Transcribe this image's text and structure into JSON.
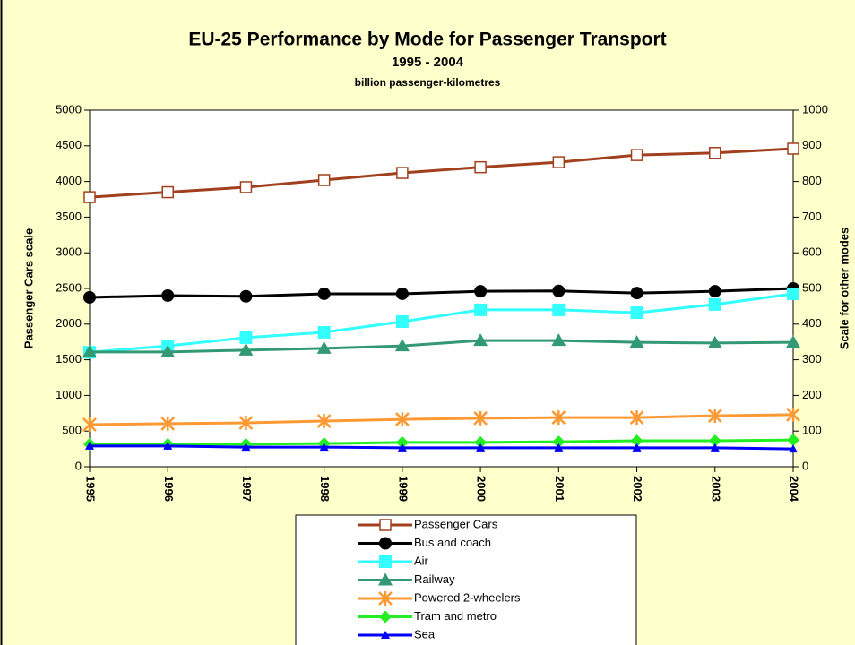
{
  "chart_data": {
    "type": "line",
    "title": "EU-25 Performance by Mode for Passenger Transport",
    "subtitle": "1995 - 2004",
    "units_label": "billion passenger-kilometres",
    "ylabel": "Passenger Cars scale",
    "y2label": "Scale for other modes",
    "categories": [
      "1995",
      "1996",
      "1997",
      "1998",
      "1999",
      "2000",
      "2001",
      "2002",
      "2003",
      "2004"
    ],
    "ylim": [
      0,
      5000
    ],
    "yticks": [
      0,
      500,
      1000,
      1500,
      2000,
      2500,
      3000,
      3500,
      4000,
      4500,
      5000
    ],
    "y2lim": [
      0,
      1000
    ],
    "y2ticks": [
      0,
      100,
      200,
      300,
      400,
      500,
      600,
      700,
      800,
      900,
      1000
    ],
    "grid": false,
    "series": [
      {
        "name": "Passenger Cars",
        "color": "#a0401f",
        "marker": "square-open",
        "axis": "y",
        "values": [
          3780,
          3850,
          3920,
          4020,
          4120,
          4200,
          4270,
          4370,
          4400,
          4460
        ]
      },
      {
        "name": "Bus and coach",
        "color": "#000000",
        "marker": "circle",
        "axis": "y2",
        "values": [
          475,
          480,
          478,
          485,
          485,
          492,
          493,
          487,
          492,
          500
        ]
      },
      {
        "name": "Air",
        "color": "#33ffff",
        "marker": "square",
        "axis": "y2",
        "values": [
          321,
          339,
          362,
          377,
          407,
          440,
          440,
          432,
          455,
          485
        ]
      },
      {
        "name": "Railway",
        "color": "#339975",
        "marker": "triangle",
        "axis": "y2",
        "values": [
          322,
          322,
          327,
          332,
          339,
          354,
          354,
          349,
          347,
          349
        ]
      },
      {
        "name": "Powered 2-wheelers",
        "color": "#ff9933",
        "marker": "star",
        "axis": "y2",
        "values": [
          118,
          121,
          123,
          128,
          133,
          136,
          138,
          138,
          143,
          146
        ]
      },
      {
        "name": "Tram and metro",
        "color": "#22ee22",
        "marker": "diamond",
        "axis": "y2",
        "values": [
          63,
          63,
          63,
          65,
          68,
          68,
          70,
          73,
          73,
          75
        ]
      },
      {
        "name": "Sea",
        "color": "#0000ff",
        "marker": "small-triangle",
        "axis": "y2",
        "values": [
          58,
          58,
          55,
          55,
          53,
          53,
          53,
          53,
          53,
          50
        ]
      }
    ]
  }
}
